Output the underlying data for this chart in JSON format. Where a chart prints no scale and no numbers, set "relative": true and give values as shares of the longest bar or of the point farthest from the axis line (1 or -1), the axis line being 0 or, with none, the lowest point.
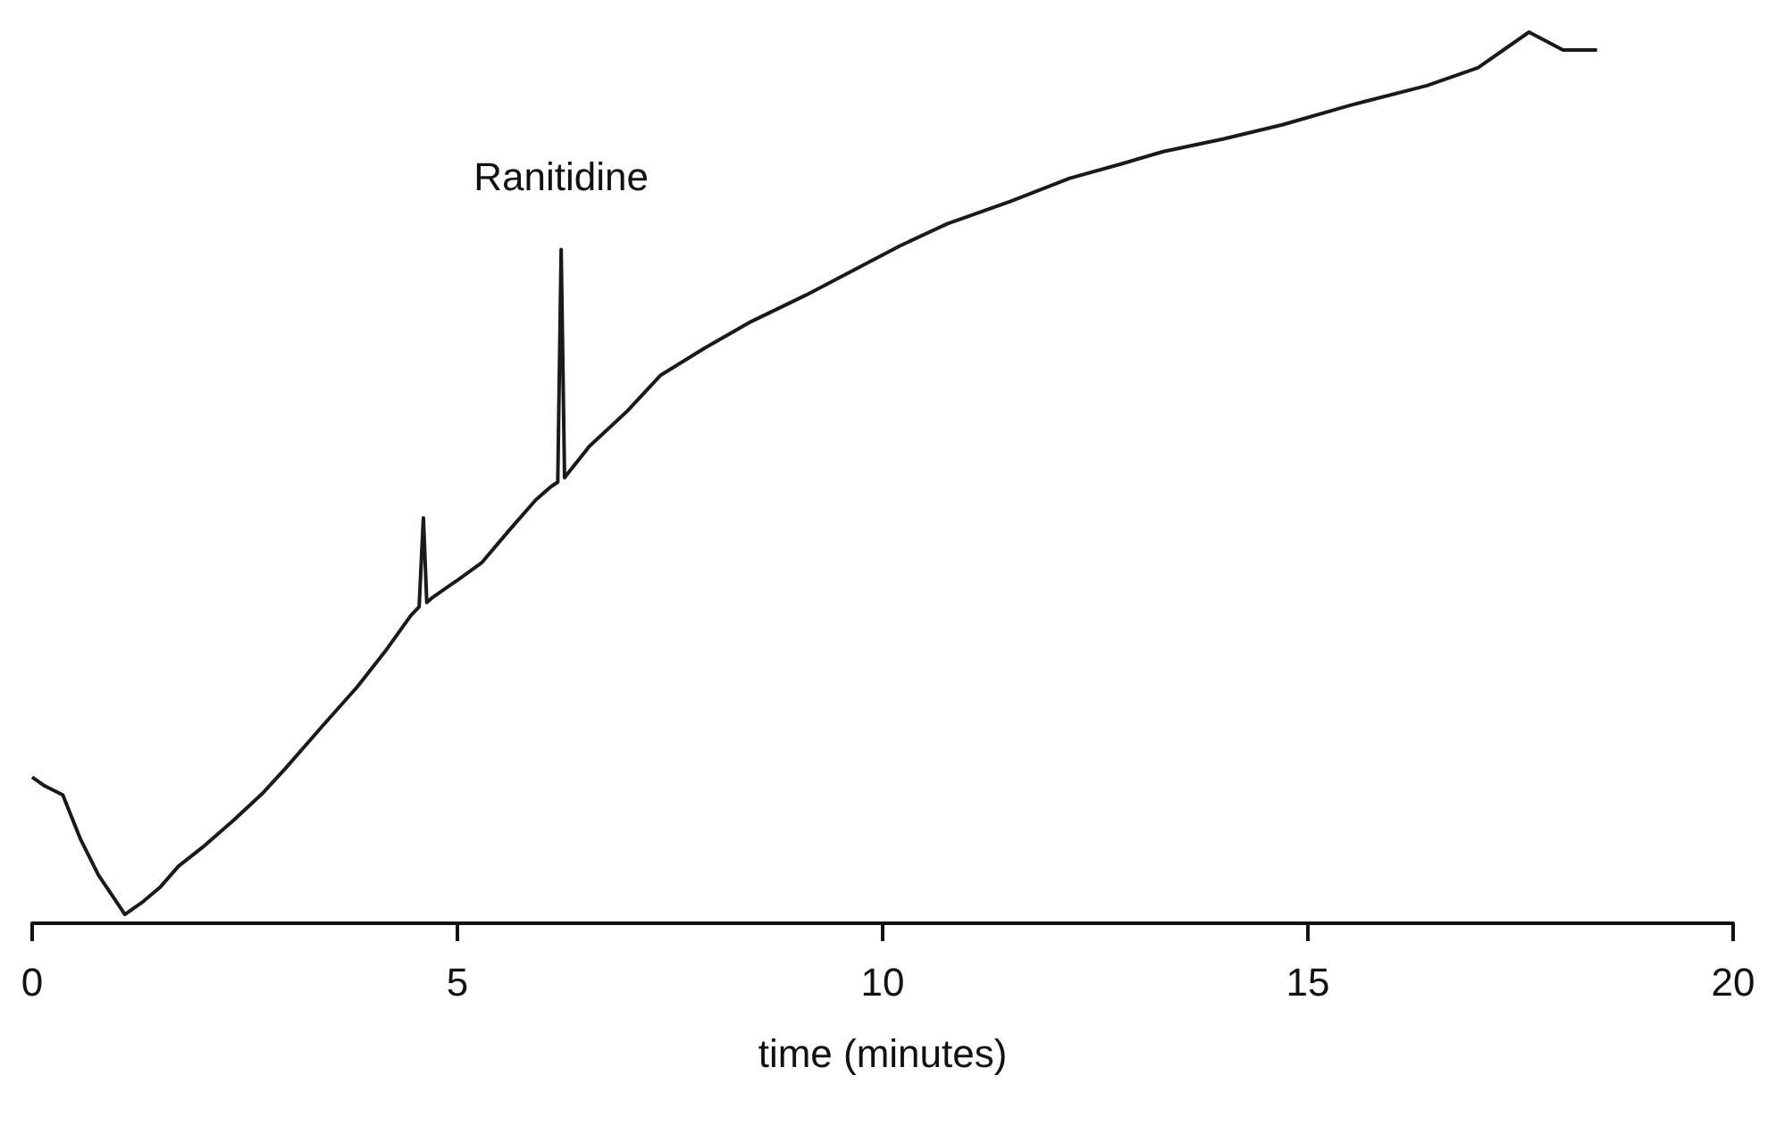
{
  "chart_data": {
    "type": "line",
    "relative": true,
    "xlabel": "time (minutes)",
    "xlim": [
      0,
      20
    ],
    "xticks": [
      0,
      5,
      10,
      15,
      20
    ],
    "grid": false,
    "marker": "none",
    "annotations": [
      {
        "text": "Ranitidine",
        "x": 6.22,
        "y": 0.756
      }
    ],
    "series": [
      {
        "color": "#1a1a1a",
        "x": [
          0,
          0.15,
          0.36,
          0.57,
          0.78,
          0.95,
          1.09,
          1.3,
          1.5,
          1.72,
          2.0,
          2.35,
          2.7,
          2.98,
          3.4,
          3.82,
          4.15,
          4.45,
          4.55,
          4.6,
          4.64,
          4.7,
          5.0,
          5.29,
          5.6,
          5.92,
          6.1,
          6.18,
          6.22,
          6.26,
          6.3,
          6.55,
          7.0,
          7.39,
          7.9,
          8.45,
          9.1,
          9.7,
          10.2,
          10.76,
          11.5,
          12.2,
          12.8,
          13.3,
          14.0,
          14.7,
          15.5,
          16.4,
          17.0,
          17.6,
          18.0,
          18.4
        ],
        "values": [
          0.164,
          0.154,
          0.144,
          0.094,
          0.054,
          0.03,
          0.01,
          0.024,
          0.04,
          0.064,
          0.085,
          0.114,
          0.145,
          0.174,
          0.22,
          0.265,
          0.305,
          0.345,
          0.355,
          0.455,
          0.36,
          0.365,
          0.385,
          0.405,
          0.44,
          0.475,
          0.49,
          0.495,
          0.756,
          0.5,
          0.505,
          0.535,
          0.575,
          0.615,
          0.645,
          0.675,
          0.705,
          0.735,
          0.76,
          0.785,
          0.81,
          0.836,
          0.852,
          0.866,
          0.88,
          0.896,
          0.918,
          0.94,
          0.96,
          1.0,
          0.98,
          0.98
        ]
      }
    ]
  }
}
